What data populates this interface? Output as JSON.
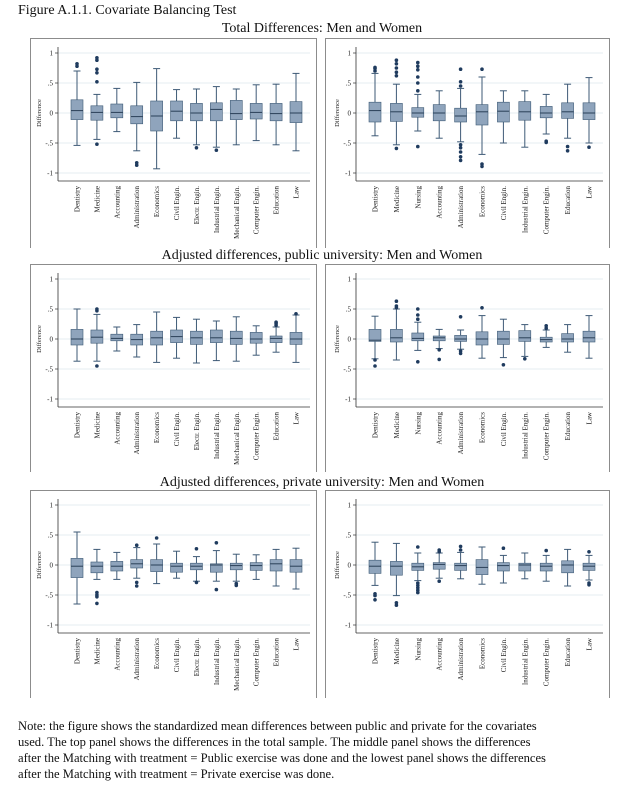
{
  "figure_title": "Figure A.1.1. Covariate Balancing Test",
  "panel_titles": [
    "Total Differences: Men and Women",
    "Adjusted differences, public university: Men and Women",
    "Adjusted differences, private university: Men and Women"
  ],
  "note_lines": [
    "Note: the figure shows the standardized mean differences between public and private for the covariates",
    "used.  The top panel shows the differences in the total sample.  The middle panel shows the differences",
    "after the Matching with treatment = Public exercise was done and the lowest panel shows the differences",
    "after the Matching with treatment = Private exercise was done."
  ],
  "colors": {
    "box_fill": "#8fa4bc",
    "box_stroke": "#3e5a76",
    "outlier": "#1f3b5e",
    "grid": "#e6edf2"
  },
  "chart_data": [
    {
      "type": "box",
      "panel": "Total Differences: Men and Women",
      "side": "left",
      "ylabel": "Difference",
      "ylim": [
        -1.1,
        1.1
      ],
      "yticks": [
        1,
        0.5,
        0,
        -0.5,
        -1
      ],
      "ytick_labels": [
        "1",
        ".5",
        "0",
        "-.5",
        "-1"
      ],
      "categories": [
        "Dentistry",
        "Medicine",
        "Accounting",
        "Administration",
        "Economics",
        "Civil Engin.",
        "Electr. Engin.",
        "Industrial Engin.",
        "Mechanical Engin.",
        "Computer Engin.",
        "Education",
        "Law"
      ],
      "boxes": [
        [
          -0.54,
          -0.11,
          0.04,
          0.22,
          0.7,
          [
            0.78,
            0.82
          ]
        ],
        [
          -0.44,
          -0.12,
          0.01,
          0.12,
          0.31,
          [
            0.52,
            0.67,
            0.73,
            0.88,
            0.92,
            -0.52
          ]
        ],
        [
          -0.31,
          -0.08,
          0.01,
          0.15,
          0.41,
          []
        ],
        [
          -0.63,
          -0.18,
          -0.06,
          0.12,
          0.51,
          [
            -0.83,
            -0.87
          ]
        ],
        [
          -0.93,
          -0.3,
          -0.05,
          0.2,
          0.74,
          []
        ],
        [
          -0.42,
          -0.13,
          0.03,
          0.2,
          0.39,
          []
        ],
        [
          -0.53,
          -0.13,
          0.0,
          0.16,
          0.4,
          [
            -0.58
          ]
        ],
        [
          -0.57,
          -0.13,
          0.06,
          0.17,
          0.44,
          [
            -0.62
          ]
        ],
        [
          -0.53,
          -0.11,
          -0.01,
          0.21,
          0.4,
          []
        ],
        [
          -0.46,
          -0.1,
          0.01,
          0.16,
          0.47,
          []
        ],
        [
          -0.53,
          -0.13,
          -0.01,
          0.16,
          0.48,
          []
        ],
        [
          -0.63,
          -0.16,
          0.0,
          0.19,
          0.66,
          []
        ]
      ]
    },
    {
      "type": "box",
      "panel": "Total Differences: Men and Women",
      "side": "right",
      "ylabel": "Difference",
      "ylim": [
        -1.1,
        1.1
      ],
      "yticks": [
        1,
        0.5,
        0,
        -0.5,
        -1
      ],
      "ytick_labels": [
        "1",
        ".5",
        "0",
        "-.5",
        "-1"
      ],
      "categories": [
        "Dentistry",
        "Medicine",
        "Nursing",
        "Accounting",
        "Administration",
        "Economics",
        "Civil Engin.",
        "Industrial Engin.",
        "Computer Engin.",
        "Education",
        "Law"
      ],
      "boxes": [
        [
          -0.38,
          -0.15,
          0.04,
          0.18,
          0.66,
          [
            0.7,
            0.74,
            0.76
          ]
        ],
        [
          -0.53,
          -0.14,
          0.02,
          0.16,
          0.48,
          [
            0.62,
            0.68,
            0.75,
            0.82,
            0.88,
            -0.59
          ]
        ],
        [
          -0.3,
          -0.07,
          0.0,
          0.09,
          0.31,
          [
            0.37,
            0.5,
            0.6,
            0.72,
            0.78,
            0.84,
            -0.56
          ]
        ],
        [
          -0.42,
          -0.13,
          0.0,
          0.14,
          0.37,
          []
        ],
        [
          -0.48,
          -0.15,
          -0.05,
          0.08,
          0.41,
          [
            0.45,
            0.52,
            0.73,
            -0.53,
            -0.58,
            -0.65,
            -0.73,
            -0.79
          ]
        ],
        [
          -0.69,
          -0.2,
          0.02,
          0.14,
          0.6,
          [
            0.73,
            -0.85,
            -0.89
          ]
        ],
        [
          -0.5,
          -0.15,
          0.03,
          0.18,
          0.37,
          []
        ],
        [
          -0.57,
          -0.12,
          0.02,
          0.19,
          0.37,
          []
        ],
        [
          -0.35,
          -0.08,
          0.0,
          0.11,
          0.31,
          [
            -0.47,
            -0.49
          ]
        ],
        [
          -0.42,
          -0.09,
          0.02,
          0.17,
          0.48,
          [
            -0.56,
            -0.63
          ]
        ],
        [
          -0.5,
          -0.11,
          0.0,
          0.17,
          0.59,
          [
            -0.57
          ]
        ]
      ]
    },
    {
      "type": "box",
      "panel": "Adjusted differences, public university: Men and Women",
      "side": "left",
      "ylabel": "Difference",
      "ylim": [
        -1.1,
        1.1
      ],
      "yticks": [
        1,
        0.5,
        0,
        -0.5,
        -1
      ],
      "ytick_labels": [
        "1",
        ".5",
        "0",
        "-.5",
        "-1"
      ],
      "categories": [
        "Dentistry",
        "Medicine",
        "Accounting",
        "Administration",
        "Economics",
        "Civil Engin.",
        "Electr. Engin.",
        "Industrial Engin.",
        "Mechanical Engin.",
        "Computer Engin.",
        "Education",
        "Law"
      ],
      "boxes": [
        [
          -0.37,
          -0.1,
          0.0,
          0.16,
          0.5,
          []
        ],
        [
          -0.37,
          -0.07,
          0.03,
          0.15,
          0.41,
          [
            0.47,
            0.5,
            -0.45
          ]
        ],
        [
          -0.2,
          -0.03,
          0.01,
          0.08,
          0.2,
          []
        ],
        [
          -0.3,
          -0.1,
          -0.01,
          0.08,
          0.24,
          []
        ],
        [
          -0.39,
          -0.1,
          0.02,
          0.13,
          0.45,
          []
        ],
        [
          -0.32,
          -0.06,
          0.04,
          0.15,
          0.36,
          []
        ],
        [
          -0.4,
          -0.09,
          0.02,
          0.13,
          0.33,
          []
        ],
        [
          -0.36,
          -0.06,
          0.02,
          0.15,
          0.3,
          []
        ],
        [
          -0.37,
          -0.09,
          0.01,
          0.13,
          0.37,
          []
        ],
        [
          -0.27,
          -0.07,
          0.0,
          0.11,
          0.22,
          []
        ],
        [
          -0.22,
          -0.06,
          0.01,
          0.05,
          0.2,
          [
            0.23,
            0.26,
            0.28
          ]
        ],
        [
          -0.39,
          -0.09,
          0.0,
          0.11,
          0.4,
          [
            0.42
          ]
        ]
      ]
    },
    {
      "type": "box",
      "panel": "Adjusted differences, public university: Men and Women",
      "side": "right",
      "ylabel": "Difference",
      "ylim": [
        -1.1,
        1.1
      ],
      "yticks": [
        1,
        0.5,
        0,
        -0.5,
        -1
      ],
      "ytick_labels": [
        "1",
        ".5",
        "0",
        "-.5",
        "-1"
      ],
      "categories": [
        "Dentistry",
        "Medicine",
        "Nursing",
        "Accounting",
        "Administration",
        "Economics",
        "Civil Engin.",
        "Industrial Engin.",
        "Computer Engin.",
        "Education",
        "Law"
      ],
      "boxes": [
        [
          -0.33,
          -0.04,
          -0.02,
          0.16,
          0.38,
          [
            -0.35,
            -0.45
          ]
        ],
        [
          -0.35,
          -0.05,
          0.02,
          0.16,
          0.5,
          [
            0.52,
            0.55,
            0.63
          ]
        ],
        [
          -0.19,
          -0.03,
          0.01,
          0.1,
          0.28,
          [
            0.33,
            0.4,
            0.5,
            -0.38
          ]
        ],
        [
          -0.16,
          -0.03,
          0.02,
          0.05,
          0.16,
          [
            -0.18,
            -0.34
          ]
        ],
        [
          -0.17,
          -0.04,
          0.0,
          0.06,
          0.15,
          [
            0.37,
            -0.2,
            -0.24
          ]
        ],
        [
          -0.32,
          -0.1,
          0.0,
          0.12,
          0.39,
          [
            0.52
          ]
        ],
        [
          -0.31,
          -0.09,
          0.0,
          0.13,
          0.33,
          [
            -0.43
          ]
        ],
        [
          -0.29,
          -0.04,
          0.02,
          0.14,
          0.24,
          [
            -0.33
          ]
        ],
        [
          -0.14,
          -0.05,
          -0.01,
          0.03,
          0.15,
          [
            0.18,
            0.22
          ]
        ],
        [
          -0.22,
          -0.05,
          0.0,
          0.09,
          0.24,
          []
        ],
        [
          -0.32,
          -0.05,
          0.02,
          0.13,
          0.39,
          []
        ]
      ]
    },
    {
      "type": "box",
      "panel": "Adjusted differences, private university: Men and Women",
      "side": "left",
      "ylabel": "Difference",
      "ylim": [
        -1.1,
        1.1
      ],
      "yticks": [
        1,
        0.5,
        0,
        -0.5,
        -1
      ],
      "ytick_labels": [
        "1",
        ".5",
        "0",
        "-.5",
        "-1"
      ],
      "categories": [
        "Dentistry",
        "Medicine",
        "Accounting",
        "Administration",
        "Economics",
        "Civil Engin.",
        "Electr. Engin.",
        "Industrial Engin.",
        "Mechanical Engin.",
        "Computer Engin.",
        "Education",
        "Law"
      ],
      "boxes": [
        [
          -0.65,
          -0.21,
          -0.02,
          0.11,
          0.55,
          []
        ],
        [
          -0.24,
          -0.13,
          -0.02,
          0.05,
          0.26,
          [
            -0.46,
            -0.5,
            -0.53,
            -0.64
          ]
        ],
        [
          -0.24,
          -0.1,
          -0.02,
          0.06,
          0.21,
          []
        ],
        [
          -0.22,
          -0.05,
          0.02,
          0.09,
          0.29,
          [
            0.33,
            -0.29,
            -0.35
          ]
        ],
        [
          -0.31,
          -0.11,
          0.0,
          0.09,
          0.35,
          [
            0.45
          ]
        ],
        [
          -0.22,
          -0.12,
          -0.02,
          0.03,
          0.23,
          []
        ],
        [
          -0.27,
          -0.08,
          -0.02,
          0.03,
          0.14,
          [
            0.27,
            -0.29
          ]
        ],
        [
          -0.27,
          -0.12,
          0.0,
          0.02,
          0.24,
          [
            0.37,
            -0.41
          ]
        ],
        [
          -0.27,
          -0.08,
          -0.01,
          0.03,
          0.18,
          [
            -0.31,
            -0.34
          ]
        ],
        [
          -0.24,
          -0.09,
          -0.01,
          0.04,
          0.17,
          []
        ],
        [
          -0.35,
          -0.1,
          0.02,
          0.09,
          0.26,
          []
        ],
        [
          -0.4,
          -0.12,
          -0.02,
          0.09,
          0.28,
          []
        ]
      ]
    },
    {
      "type": "box",
      "panel": "Adjusted differences, private university: Men and Women",
      "side": "right",
      "ylabel": "Difference",
      "ylim": [
        -1.1,
        1.1
      ],
      "yticks": [
        1,
        0.5,
        0,
        -0.5,
        -1
      ],
      "ytick_labels": [
        "1",
        ".5",
        "0",
        "-.5",
        "-1"
      ],
      "categories": [
        "Dentistry",
        "Medicine",
        "Nursing",
        "Accounting",
        "Administration",
        "Economics",
        "Civil Engin.",
        "Industrial Engin.",
        "Computer Engin.",
        "Education",
        "Law"
      ],
      "boxes": [
        [
          -0.34,
          -0.14,
          -0.02,
          0.08,
          0.38,
          [
            -0.48,
            -0.51,
            -0.58
          ]
        ],
        [
          -0.51,
          -0.17,
          -0.02,
          0.06,
          0.36,
          [
            -0.63,
            -0.67
          ]
        ],
        [
          -0.26,
          -0.09,
          -0.03,
          0.03,
          0.2,
          [
            0.3,
            -0.3,
            -0.34,
            -0.38,
            -0.42,
            -0.46
          ]
        ],
        [
          -0.22,
          -0.07,
          0.01,
          0.04,
          0.2,
          [
            0.22,
            0.25,
            -0.27
          ]
        ],
        [
          -0.23,
          -0.09,
          -0.01,
          0.03,
          0.21,
          [
            0.25,
            0.31
          ]
        ],
        [
          -0.32,
          -0.16,
          -0.04,
          0.09,
          0.3,
          []
        ],
        [
          -0.3,
          -0.1,
          -0.01,
          0.04,
          0.16,
          [
            0.28
          ]
        ],
        [
          -0.23,
          -0.1,
          0.0,
          0.03,
          0.2,
          []
        ],
        [
          -0.27,
          -0.1,
          -0.02,
          0.03,
          0.16,
          [
            0.24
          ]
        ],
        [
          -0.35,
          -0.13,
          0.0,
          0.07,
          0.26,
          []
        ],
        [
          -0.25,
          -0.09,
          -0.02,
          0.03,
          0.16,
          [
            0.22,
            -0.3,
            -0.33
          ]
        ]
      ]
    }
  ]
}
